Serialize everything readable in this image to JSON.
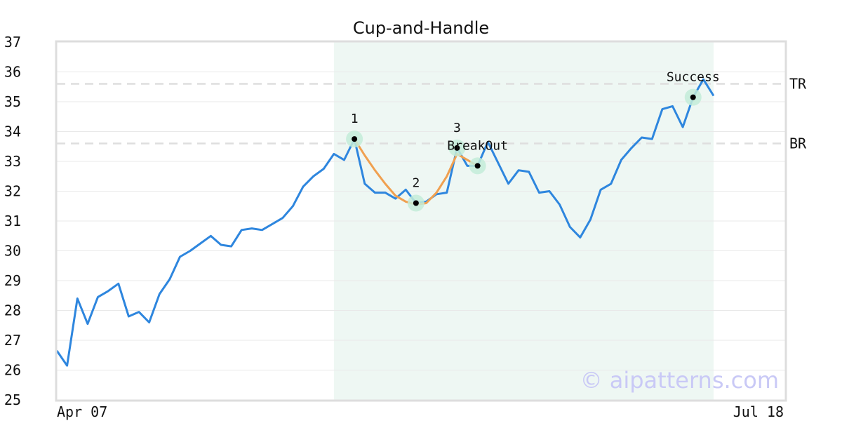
{
  "chart_data": {
    "type": "line",
    "title": "Cup-and-Handle",
    "xlabel": "",
    "ylabel": "",
    "ylim": [
      25,
      37
    ],
    "x_tick_labels": [
      "Apr 07",
      "Jul 18"
    ],
    "y_ticks": [
      25,
      26,
      27,
      28,
      29,
      30,
      31,
      32,
      33,
      34,
      35,
      36,
      37
    ],
    "grid": true,
    "series": [
      {
        "values": [
          26.65,
          26.15,
          28.4,
          27.55,
          28.45,
          28.65,
          28.9,
          27.8,
          27.95,
          27.6,
          28.55,
          29.05,
          29.8,
          30.0,
          30.25,
          30.5,
          30.2,
          30.15,
          30.7,
          30.75,
          30.7,
          30.9,
          31.1,
          31.5,
          32.15,
          32.5,
          32.75,
          33.25,
          33.05,
          33.75,
          32.25,
          31.95,
          31.95,
          31.75,
          32.05,
          31.6,
          31.65,
          31.9,
          31.95,
          33.45,
          32.85,
          32.85,
          33.65,
          32.95,
          32.25,
          32.7,
          32.65,
          31.95,
          32.0,
          31.55,
          30.8,
          30.45,
          31.05,
          32.05,
          32.25,
          33.05,
          33.45,
          33.8,
          33.75,
          34.75,
          34.85,
          34.15,
          35.15,
          35.75,
          35.2
        ],
        "color": "#2e86de"
      }
    ],
    "cup_curve": {
      "x": [
        29,
        30,
        31,
        32,
        33,
        34,
        35,
        36,
        37,
        38,
        39,
        40,
        41
      ],
      "values": [
        33.75,
        33.2,
        32.7,
        32.25,
        31.85,
        31.65,
        31.55,
        31.6,
        31.95,
        32.5,
        33.25,
        33.05,
        32.85
      ],
      "color": "#f0a050"
    },
    "pattern_region": {
      "x_start": 27,
      "x_end": 64,
      "color": "#eef7f3"
    },
    "levels": [
      {
        "label": "TR",
        "value": 35.6
      },
      {
        "label": "BR",
        "value": 33.6
      }
    ],
    "annotations": [
      {
        "label": "1",
        "x": 29,
        "y": 33.75
      },
      {
        "label": "2",
        "x": 35,
        "y": 31.6
      },
      {
        "label": "3",
        "x": 39,
        "y": 33.45
      },
      {
        "label": "BreakOut",
        "x": 41,
        "y": 32.85
      },
      {
        "label": "Success",
        "x": 62,
        "y": 35.15
      }
    ],
    "watermark": "© aipatterns.com"
  }
}
